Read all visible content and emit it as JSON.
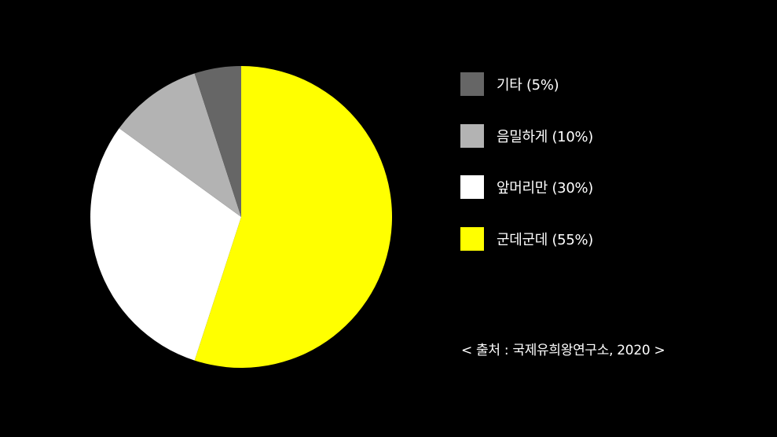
{
  "chart_data": {
    "type": "pie",
    "categories": [
      "군데군데",
      "앞머리만",
      "음밀하게",
      "기타"
    ],
    "values": [
      55,
      30,
      10,
      5
    ],
    "colors": [
      "#ffff00",
      "#ffffff",
      "#b3b3b3",
      "#666666"
    ],
    "legend_labels": [
      "기타 (5%)",
      "음밀하게 (10%)",
      "앞머리만 (30%)",
      "군데군데 (55%)"
    ],
    "legend_colors": [
      "#666666",
      "#b3b3b3",
      "#ffffff",
      "#ffff00"
    ],
    "legend_position": "right",
    "start": "top",
    "direction": "clockwise"
  },
  "source": "< 출처 : 국제유희왕연구소, 2020 >",
  "colors": {
    "background": "#000000",
    "text": "#ffffff"
  }
}
